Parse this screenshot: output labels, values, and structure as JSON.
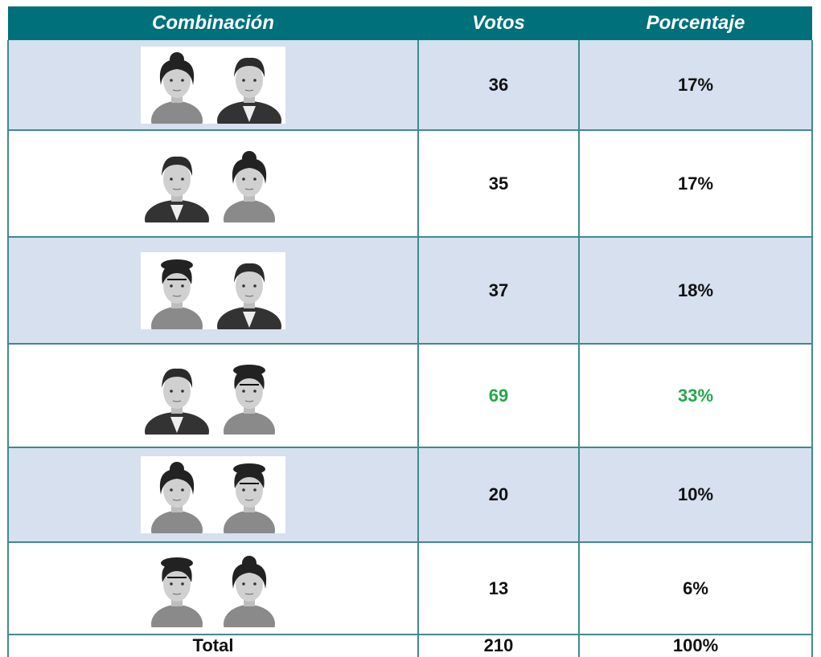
{
  "table": {
    "header": [
      "Combinación",
      "Votos",
      "Porcentaje"
    ],
    "rows": [
      {
        "votes": 36,
        "percent": "17%"
      },
      {
        "votes": 35,
        "percent": "17%"
      },
      {
        "votes": 37,
        "percent": "18%"
      },
      {
        "votes": 69,
        "percent": "33%",
        "color": "#22a84a"
      },
      {
        "votes": 20,
        "percent": "10%"
      },
      {
        "votes": 13,
        "percent": "6%"
      }
    ],
    "total": {
      "label": "Total",
      "votes": 210,
      "percent": "100%"
    }
  }
}
